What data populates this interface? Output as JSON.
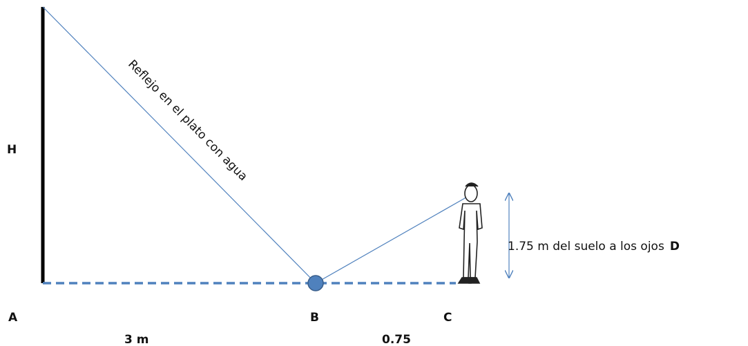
{
  "points": {
    "top": "H",
    "base": "A",
    "mirror": "B",
    "person": "C",
    "eyes": "D"
  },
  "ray_label": "Reflejo en el plato con agua",
  "distances": {
    "base_to_mirror": "3 m",
    "mirror_to_person": "0.75"
  },
  "eye_height": "1.75 m del suelo  a los  ojos"
}
